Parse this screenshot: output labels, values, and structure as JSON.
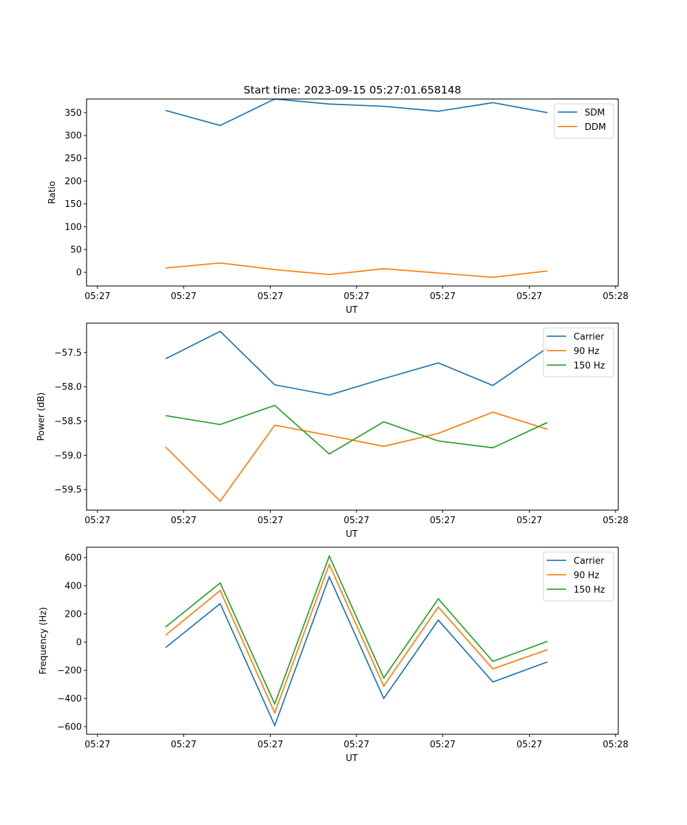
{
  "figure": {
    "title": "Start time: 2023-09-15 05:27:01.658148"
  },
  "colors": {
    "blue": "#1f77b4",
    "orange": "#ff7f0e",
    "green": "#2ca02c"
  },
  "chart_data": [
    {
      "type": "line",
      "title": "Start time: 2023-09-15 05:27:01.658148",
      "xlabel": "UT",
      "ylabel": "Ratio",
      "x_tick_labels": [
        "05:27",
        "05:27",
        "05:27",
        "05:27",
        "05:27",
        "05:27",
        "05:28"
      ],
      "y_ticks": [
        0,
        50,
        100,
        150,
        200,
        250,
        300,
        350
      ],
      "y_tick_labels": [
        "0",
        "50",
        "100",
        "150",
        "200",
        "250",
        "300",
        "350"
      ],
      "ylim": [
        -30,
        380
      ],
      "x_points": [
        1,
        2,
        3,
        4,
        5,
        6,
        7,
        8
      ],
      "x_ticks": [
        -0.25,
        1.33,
        2.92,
        4.5,
        6.08,
        7.67,
        9.25
      ],
      "xlim": [
        -0.45,
        9.3
      ],
      "legend_position": "upper-right",
      "grid": false,
      "series": [
        {
          "name": "SDM",
          "color": "#1f77b4",
          "values": [
            355,
            322,
            380,
            369,
            364,
            353,
            372,
            350
          ]
        },
        {
          "name": "DDM",
          "color": "#ff7f0e",
          "values": [
            9.5,
            20.5,
            6,
            -5,
            8,
            -1.5,
            -11,
            3
          ]
        }
      ]
    },
    {
      "type": "line",
      "title": "",
      "xlabel": "UT",
      "ylabel": "Power (dB)",
      "x_tick_labels": [
        "05:27",
        "05:27",
        "05:27",
        "05:27",
        "05:27",
        "05:27",
        "05:28"
      ],
      "y_ticks": [
        -59.5,
        -59.0,
        -58.5,
        -58.0,
        -57.5
      ],
      "y_tick_labels": [
        "−59.5",
        "−59.0",
        "−58.5",
        "−58.0",
        "−57.5"
      ],
      "ylim": [
        -59.8,
        -57.07
      ],
      "x_points": [
        1,
        2,
        3,
        4,
        5,
        6,
        7,
        8
      ],
      "x_ticks": [
        -0.25,
        1.33,
        2.92,
        4.5,
        6.08,
        7.67,
        9.25
      ],
      "xlim": [
        -0.45,
        9.3
      ],
      "legend_position": "upper-right",
      "grid": false,
      "series": [
        {
          "name": "Carrier",
          "color": "#1f77b4",
          "values": [
            -57.59,
            -57.19,
            -57.97,
            -58.12,
            -57.88,
            -57.65,
            -57.98,
            -57.43
          ]
        },
        {
          "name": "90 Hz",
          "color": "#ff7f0e",
          "values": [
            -58.88,
            -59.67,
            -58.56,
            -58.71,
            -58.87,
            -58.68,
            -58.37,
            -58.62
          ]
        },
        {
          "name": "150 Hz",
          "color": "#2ca02c",
          "values": [
            -58.42,
            -58.55,
            -58.27,
            -58.98,
            -58.51,
            -58.79,
            -58.89,
            -58.52
          ]
        }
      ]
    },
    {
      "type": "line",
      "title": "",
      "xlabel": "UT",
      "ylabel": "Frequency (Hz)",
      "x_tick_labels": [
        "05:27",
        "05:27",
        "05:27",
        "05:27",
        "05:27",
        "05:27",
        "05:28"
      ],
      "y_ticks": [
        -600,
        -400,
        -200,
        0,
        200,
        400,
        600
      ],
      "y_tick_labels": [
        "−600",
        "−400",
        "−200",
        "0",
        "200",
        "400",
        "600"
      ],
      "ylim": [
        -654,
        673
      ],
      "x_points": [
        1,
        2,
        3,
        4,
        5,
        6,
        7,
        8
      ],
      "x_ticks": [
        -0.25,
        1.33,
        2.92,
        4.5,
        6.08,
        7.67,
        9.25
      ],
      "xlim": [
        -0.45,
        9.3
      ],
      "legend_position": "upper-right",
      "grid": false,
      "series": [
        {
          "name": "Carrier",
          "color": "#1f77b4",
          "values": [
            -39,
            273,
            -592,
            463,
            -400,
            156,
            -283,
            -141
          ]
        },
        {
          "name": "90 Hz",
          "color": "#ff7f0e",
          "values": [
            49,
            366,
            -502,
            551,
            -312,
            249,
            -190,
            -54
          ]
        },
        {
          "name": "150 Hz",
          "color": "#2ca02c",
          "values": [
            107,
            420,
            -439,
            610,
            -254,
            307,
            -137,
            5
          ]
        }
      ]
    }
  ]
}
